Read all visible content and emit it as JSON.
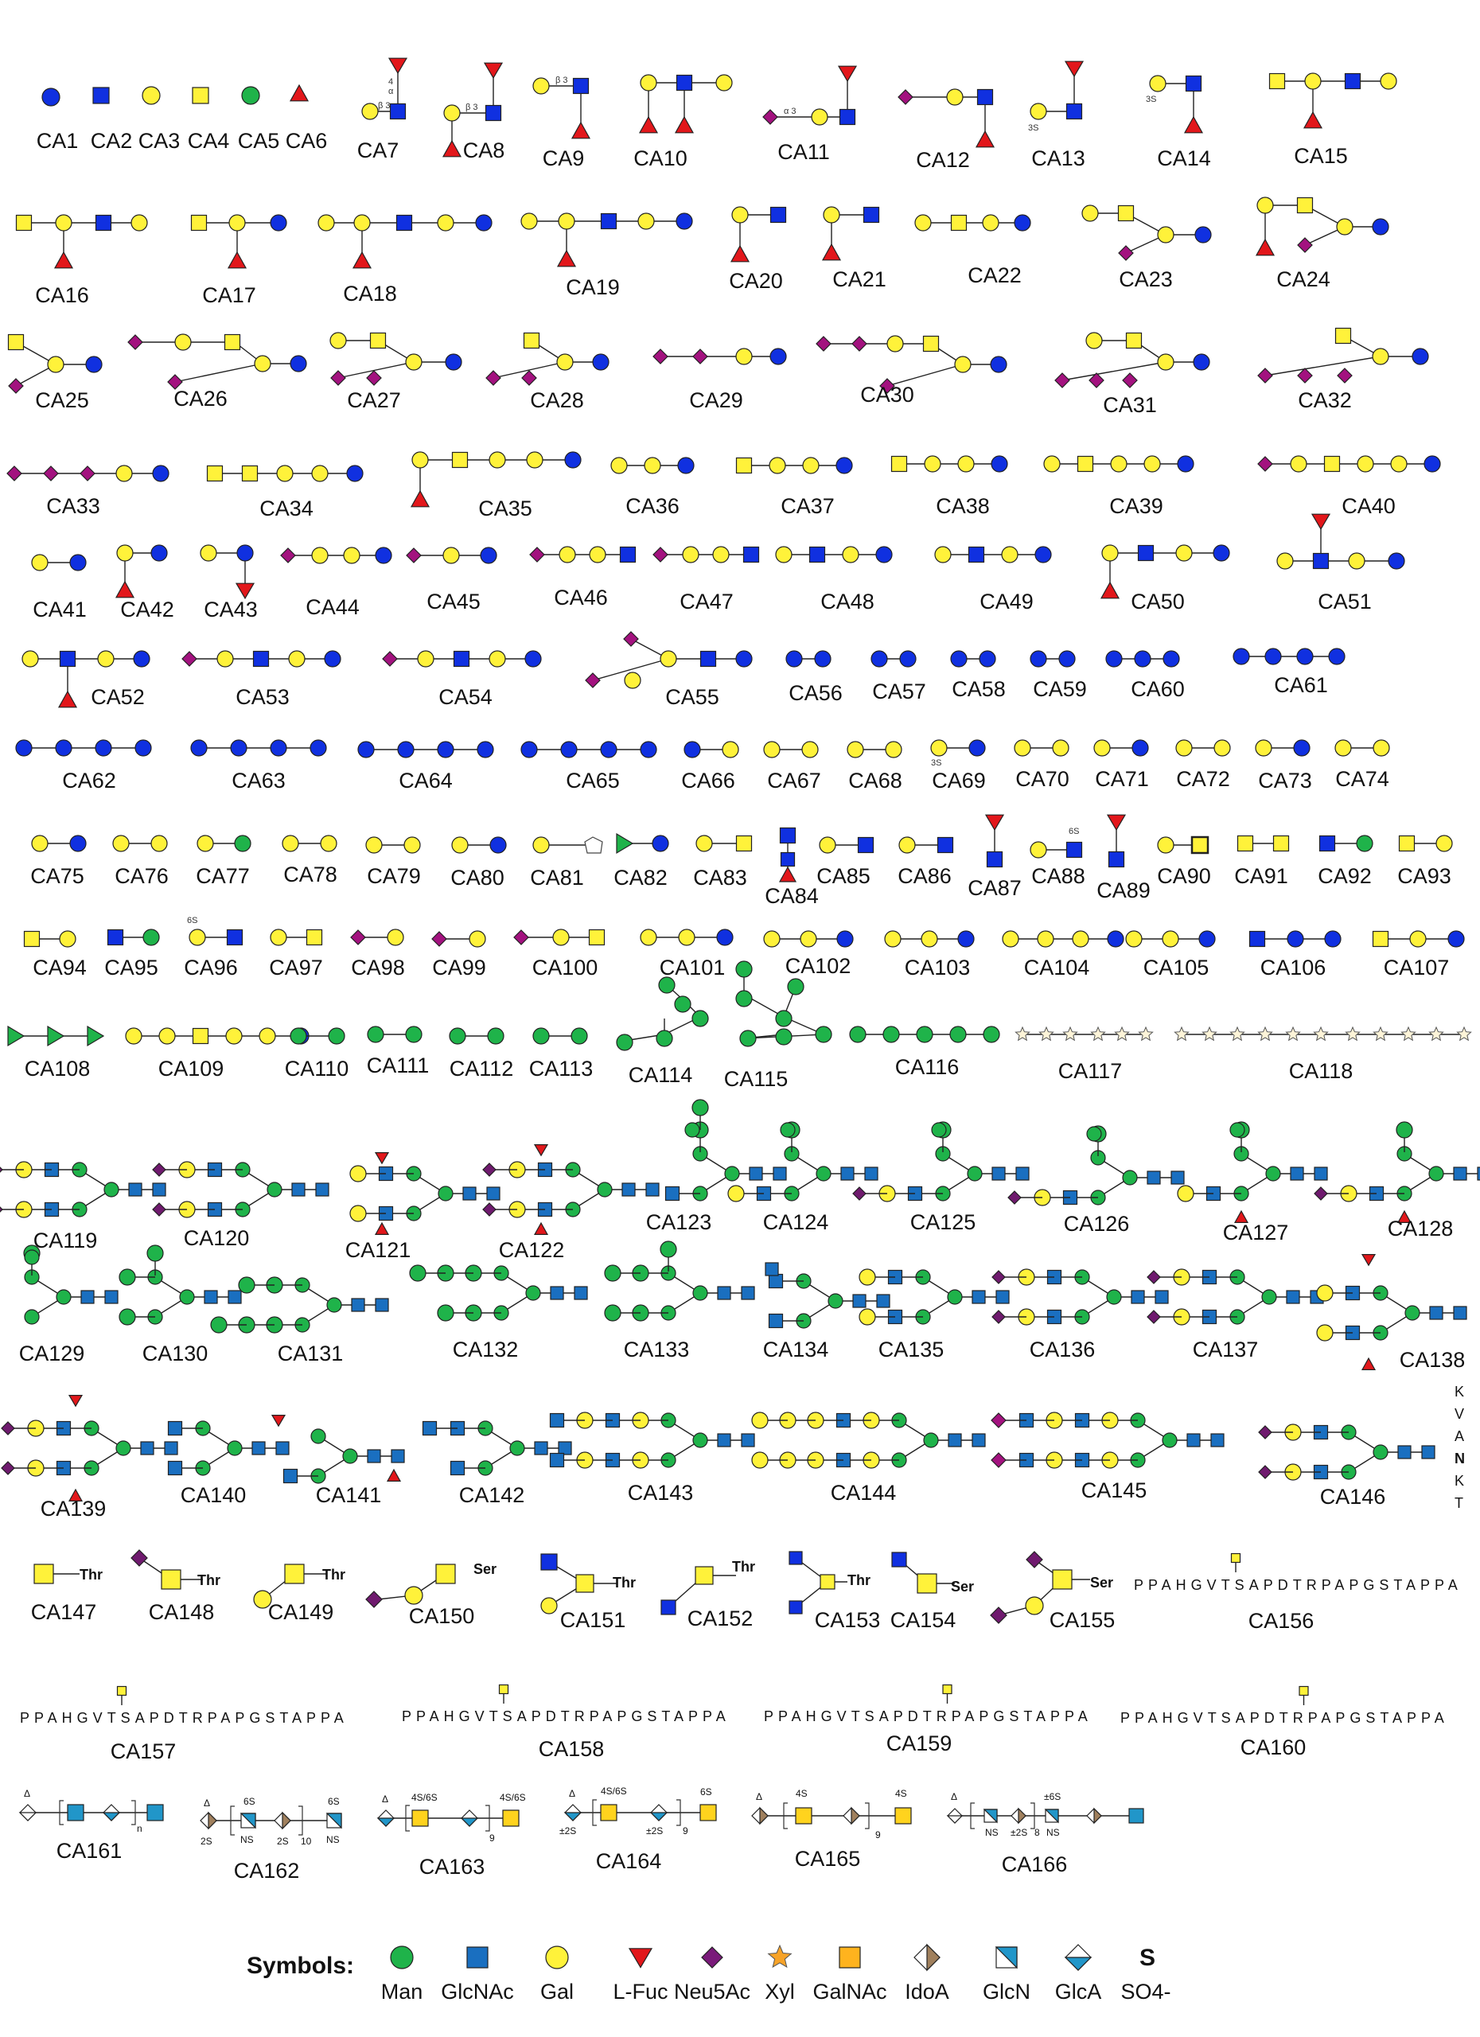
{
  "colors": {
    "Man": "#1fb34a",
    "GlcNAc": "#0a3fd6",
    "GlcNAc_alt": "#1a6fc0",
    "Gal": "#fff23a",
    "Fuc": "#e2171b",
    "Neu5Ac": "#a3127f",
    "Neu5Ac_alt": "#6f1a6e",
    "Xyl": "#f7a328",
    "GalNAc": "#ffd31e",
    "IdoA": "#a0805d",
    "GlcN": "#2196c9",
    "GlcA": "#2196c9",
    "Glc": "#1030e0"
  },
  "compounds": [
    {
      "id": "CA1",
      "label": "CA1"
    },
    {
      "id": "CA2",
      "label": "CA2"
    },
    {
      "id": "CA3",
      "label": "CA3"
    },
    {
      "id": "CA4",
      "label": "CA4"
    },
    {
      "id": "CA5",
      "label": "CA5"
    },
    {
      "id": "CA6",
      "label": "CA6"
    },
    {
      "id": "CA7",
      "label": "CA7"
    },
    {
      "id": "CA8",
      "label": "CA8"
    },
    {
      "id": "CA9",
      "label": "CA9"
    },
    {
      "id": "CA10",
      "label": "CA10"
    },
    {
      "id": "CA11",
      "label": "CA11"
    },
    {
      "id": "CA12",
      "label": "CA12"
    },
    {
      "id": "CA13",
      "label": "CA13"
    },
    {
      "id": "CA14",
      "label": "CA14"
    },
    {
      "id": "CA15",
      "label": "CA15"
    },
    {
      "id": "CA16",
      "label": "CA16"
    },
    {
      "id": "CA17",
      "label": "CA17"
    },
    {
      "id": "CA18",
      "label": "CA18"
    },
    {
      "id": "CA19",
      "label": "CA19"
    },
    {
      "id": "CA20",
      "label": "CA20"
    },
    {
      "id": "CA21",
      "label": "CA21"
    },
    {
      "id": "CA22",
      "label": "CA22"
    },
    {
      "id": "CA23",
      "label": "CA23"
    },
    {
      "id": "CA24",
      "label": "CA24"
    },
    {
      "id": "CA25",
      "label": "CA25"
    },
    {
      "id": "CA26",
      "label": "CA26"
    },
    {
      "id": "CA27",
      "label": "CA27"
    },
    {
      "id": "CA28",
      "label": "CA28"
    },
    {
      "id": "CA29",
      "label": "CA29"
    },
    {
      "id": "CA30",
      "label": "CA30"
    },
    {
      "id": "CA31",
      "label": "CA31"
    },
    {
      "id": "CA32",
      "label": "CA32"
    },
    {
      "id": "CA33",
      "label": "CA33"
    },
    {
      "id": "CA34",
      "label": "CA34"
    },
    {
      "id": "CA35",
      "label": "CA35"
    },
    {
      "id": "CA36",
      "label": "CA36"
    },
    {
      "id": "CA37",
      "label": "CA37"
    },
    {
      "id": "CA38",
      "label": "CA38"
    },
    {
      "id": "CA39",
      "label": "CA39"
    },
    {
      "id": "CA40",
      "label": "CA40"
    },
    {
      "id": "CA41",
      "label": "CA41"
    },
    {
      "id": "CA42",
      "label": "CA42"
    },
    {
      "id": "CA43",
      "label": "CA43"
    },
    {
      "id": "CA44",
      "label": "CA44"
    },
    {
      "id": "CA45",
      "label": "CA45"
    },
    {
      "id": "CA46",
      "label": "CA46"
    },
    {
      "id": "CA47",
      "label": "CA47"
    },
    {
      "id": "CA48",
      "label": "CA48"
    },
    {
      "id": "CA49",
      "label": "CA49"
    },
    {
      "id": "CA50",
      "label": "CA50"
    },
    {
      "id": "CA51",
      "label": "CA51"
    },
    {
      "id": "CA52",
      "label": "CA52"
    },
    {
      "id": "CA53",
      "label": "CA53"
    },
    {
      "id": "CA54",
      "label": "CA54"
    },
    {
      "id": "CA55",
      "label": "CA55"
    },
    {
      "id": "CA56",
      "label": "CA56"
    },
    {
      "id": "CA57",
      "label": "CA57"
    },
    {
      "id": "CA58",
      "label": "CA58"
    },
    {
      "id": "CA59",
      "label": "CA59"
    },
    {
      "id": "CA60",
      "label": "CA60"
    },
    {
      "id": "CA61",
      "label": "CA61"
    },
    {
      "id": "CA62",
      "label": "CA62"
    },
    {
      "id": "CA63",
      "label": "CA63"
    },
    {
      "id": "CA64",
      "label": "CA64"
    },
    {
      "id": "CA65",
      "label": "CA65"
    },
    {
      "id": "CA66",
      "label": "CA66"
    },
    {
      "id": "CA67",
      "label": "CA67"
    },
    {
      "id": "CA68",
      "label": "CA68"
    },
    {
      "id": "CA69",
      "label": "CA69"
    },
    {
      "id": "CA70",
      "label": "CA70"
    },
    {
      "id": "CA71",
      "label": "CA71"
    },
    {
      "id": "CA72",
      "label": "CA72"
    },
    {
      "id": "CA73",
      "label": "CA73"
    },
    {
      "id": "CA74",
      "label": "CA74"
    },
    {
      "id": "CA75",
      "label": "CA75"
    },
    {
      "id": "CA76",
      "label": "CA76"
    },
    {
      "id": "CA77",
      "label": "CA77"
    },
    {
      "id": "CA78",
      "label": "CA78"
    },
    {
      "id": "CA79",
      "label": "CA79"
    },
    {
      "id": "CA80",
      "label": "CA80"
    },
    {
      "id": "CA81",
      "label": "CA81"
    },
    {
      "id": "CA82",
      "label": "CA82"
    },
    {
      "id": "CA83",
      "label": "CA83"
    },
    {
      "id": "CA84",
      "label": "CA84"
    },
    {
      "id": "CA85",
      "label": "CA85"
    },
    {
      "id": "CA86",
      "label": "CA86"
    },
    {
      "id": "CA87",
      "label": "CA87"
    },
    {
      "id": "CA88",
      "label": "CA88"
    },
    {
      "id": "CA89",
      "label": "CA89"
    },
    {
      "id": "CA90",
      "label": "CA90"
    },
    {
      "id": "CA91",
      "label": "CA91"
    },
    {
      "id": "CA92",
      "label": "CA92"
    },
    {
      "id": "CA93",
      "label": "CA93"
    },
    {
      "id": "CA94",
      "label": "CA94"
    },
    {
      "id": "CA95",
      "label": "CA95"
    },
    {
      "id": "CA96",
      "label": "CA96"
    },
    {
      "id": "CA97",
      "label": "CA97"
    },
    {
      "id": "CA98",
      "label": "CA98"
    },
    {
      "id": "CA99",
      "label": "CA99"
    },
    {
      "id": "CA100",
      "label": "CA100"
    },
    {
      "id": "CA101",
      "label": "CA101"
    },
    {
      "id": "CA102",
      "label": "CA102"
    },
    {
      "id": "CA103",
      "label": "CA103"
    },
    {
      "id": "CA104",
      "label": "CA104"
    },
    {
      "id": "CA105",
      "label": "CA105"
    },
    {
      "id": "CA106",
      "label": "CA106"
    },
    {
      "id": "CA107",
      "label": "CA107"
    },
    {
      "id": "CA108",
      "label": "CA108"
    },
    {
      "id": "CA109",
      "label": "CA109"
    },
    {
      "id": "CA110",
      "label": "CA110"
    },
    {
      "id": "CA111",
      "label": "CA111"
    },
    {
      "id": "CA112",
      "label": "CA112"
    },
    {
      "id": "CA113",
      "label": "CA113"
    },
    {
      "id": "CA114",
      "label": "CA114"
    },
    {
      "id": "CA115",
      "label": "CA115"
    },
    {
      "id": "CA116",
      "label": "CA116"
    },
    {
      "id": "CA117",
      "label": "CA117"
    },
    {
      "id": "CA118",
      "label": "CA118"
    },
    {
      "id": "CA119",
      "label": "CA119"
    },
    {
      "id": "CA120",
      "label": "CA120"
    },
    {
      "id": "CA121",
      "label": "CA121"
    },
    {
      "id": "CA122",
      "label": "CA122"
    },
    {
      "id": "CA123",
      "label": "CA123"
    },
    {
      "id": "CA124",
      "label": "CA124"
    },
    {
      "id": "CA125",
      "label": "CA125"
    },
    {
      "id": "CA126",
      "label": "CA126"
    },
    {
      "id": "CA127",
      "label": "CA127"
    },
    {
      "id": "CA128",
      "label": "CA128"
    },
    {
      "id": "CA129",
      "label": "CA129"
    },
    {
      "id": "CA130",
      "label": "CA130"
    },
    {
      "id": "CA131",
      "label": "CA131"
    },
    {
      "id": "CA132",
      "label": "CA132"
    },
    {
      "id": "CA133",
      "label": "CA133"
    },
    {
      "id": "CA134",
      "label": "CA134"
    },
    {
      "id": "CA135",
      "label": "CA135"
    },
    {
      "id": "CA136",
      "label": "CA136"
    },
    {
      "id": "CA137",
      "label": "CA137"
    },
    {
      "id": "CA138",
      "label": "CA138"
    },
    {
      "id": "CA139",
      "label": "CA139"
    },
    {
      "id": "CA140",
      "label": "CA140"
    },
    {
      "id": "CA141",
      "label": "CA141"
    },
    {
      "id": "CA142",
      "label": "CA142"
    },
    {
      "id": "CA143",
      "label": "CA143"
    },
    {
      "id": "CA144",
      "label": "CA144"
    },
    {
      "id": "CA145",
      "label": "CA145"
    },
    {
      "id": "CA146",
      "label": "CA146"
    },
    {
      "id": "CA147",
      "label": "CA147"
    },
    {
      "id": "CA148",
      "label": "CA148"
    },
    {
      "id": "CA149",
      "label": "CA149"
    },
    {
      "id": "CA150",
      "label": "CA150"
    },
    {
      "id": "CA151",
      "label": "CA151"
    },
    {
      "id": "CA152",
      "label": "CA152"
    },
    {
      "id": "CA153",
      "label": "CA153"
    },
    {
      "id": "CA154",
      "label": "CA154"
    },
    {
      "id": "CA155",
      "label": "CA155"
    },
    {
      "id": "CA156",
      "label": "CA156"
    },
    {
      "id": "CA157",
      "label": "CA157"
    },
    {
      "id": "CA158",
      "label": "CA158"
    },
    {
      "id": "CA159",
      "label": "CA159"
    },
    {
      "id": "CA160",
      "label": "CA160"
    },
    {
      "id": "CA161",
      "label": "CA161"
    },
    {
      "id": "CA162",
      "label": "CA162"
    },
    {
      "id": "CA163",
      "label": "CA163"
    },
    {
      "id": "CA164",
      "label": "CA164"
    },
    {
      "id": "CA165",
      "label": "CA165"
    },
    {
      "id": "CA166",
      "label": "CA166"
    }
  ],
  "peptide": "PPAHGVTSAPDTRPAPGSTAPPA",
  "peptide_vertical": [
    "K",
    "V",
    "A",
    "N",
    "K",
    "T"
  ],
  "amino_acids": {
    "thr": "Thr",
    "ser": "Ser"
  },
  "gag_text": {
    "delta": "Δ",
    "n": "n",
    "nine": "9",
    "eight": "8",
    "ten": "10",
    "s2": "2S",
    "ns": "NS",
    "s6": "6S",
    "s4": "4S",
    "s4s6": "4S/6S",
    "pm2s": "±2S",
    "pm6s": "±6S"
  },
  "legend": {
    "title": "Symbols:",
    "items": [
      {
        "name": "Man",
        "shape": "circle",
        "color": "#1fb34a"
      },
      {
        "name": "GlcNAc",
        "shape": "square",
        "color": "#1a6fc0"
      },
      {
        "name": "Gal",
        "shape": "circle",
        "color": "#fff23a"
      },
      {
        "name": "L-Fuc",
        "shape": "triangle",
        "color": "#e2171b"
      },
      {
        "name": "Neu5Ac",
        "shape": "diamond",
        "color": "#7a1a7a"
      },
      {
        "name": "Xyl",
        "shape": "star",
        "color": "#f7a328"
      },
      {
        "name": "GalNAc",
        "shape": "square",
        "color": "#ffb31e"
      },
      {
        "name": "IdoA",
        "shape": "split-diamond",
        "color": "#a0805d"
      },
      {
        "name": "GlcN",
        "shape": "split-square",
        "color": "#2196c9"
      },
      {
        "name": "GlcA",
        "shape": "split-diamond-h",
        "color": "#2196c9"
      },
      {
        "name": "SO4-",
        "shape": "text",
        "color": "#111111"
      }
    ],
    "sulfate_glyph": "S",
    "sulfate_label": "SO4-"
  }
}
